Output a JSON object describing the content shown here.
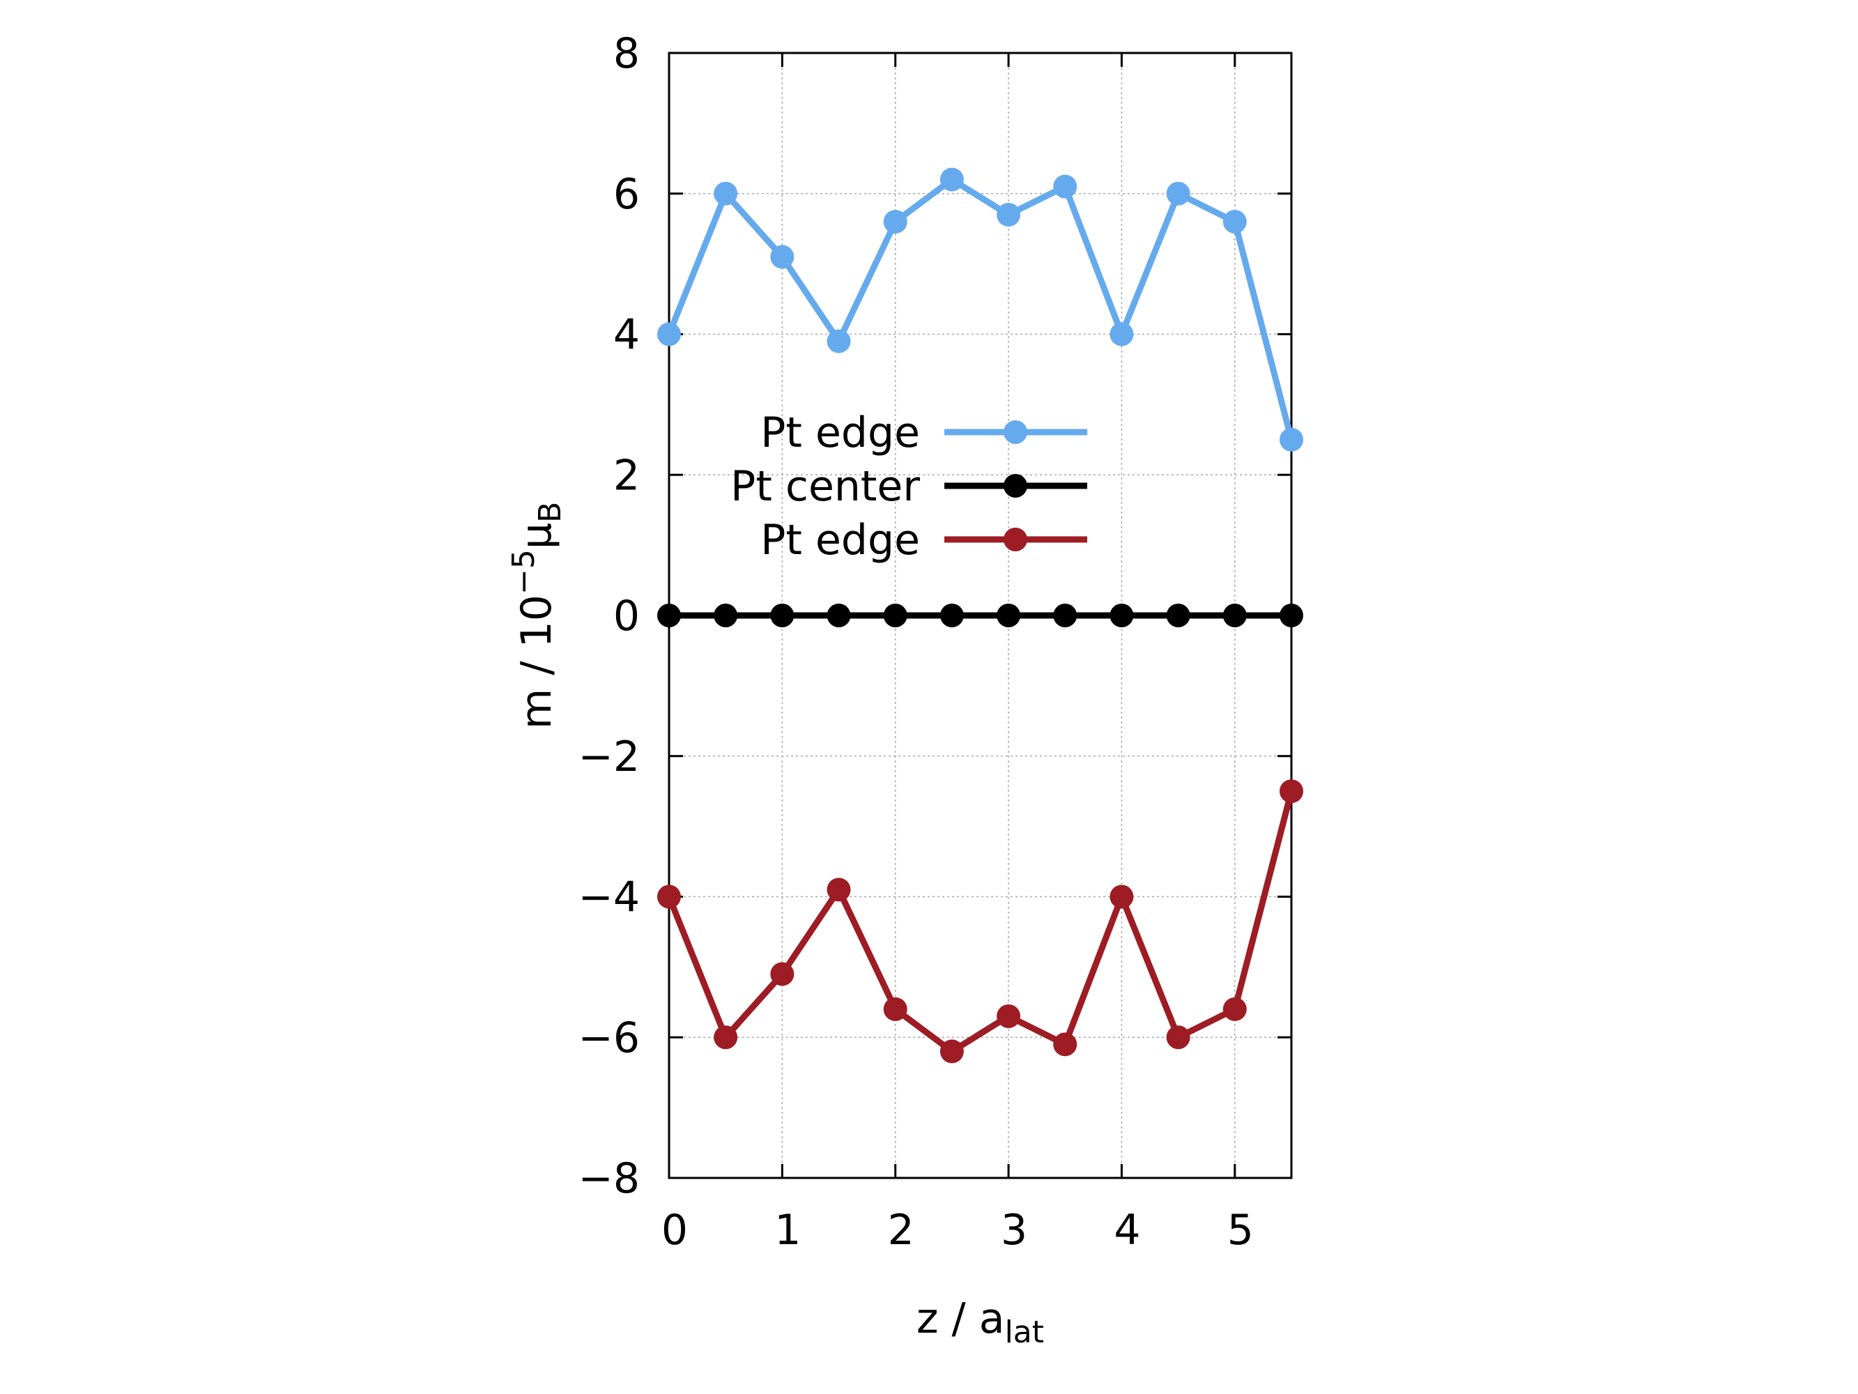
{
  "chart_data": {
    "type": "line",
    "title": "",
    "xlabel": {
      "main": "z / a",
      "sub": "lat"
    },
    "ylabel": {
      "main": "m / 10",
      "sup": "−5",
      "mu": "μ",
      "sub": "B"
    },
    "xlim": [
      0,
      5.5
    ],
    "ylim": [
      -8,
      8
    ],
    "xticks": [
      0,
      1,
      2,
      3,
      4,
      5
    ],
    "xtick_labels": [
      "0",
      "1",
      "2",
      "3",
      "4",
      "5"
    ],
    "yticks": [
      -8,
      -6,
      -4,
      -2,
      0,
      2,
      4,
      6,
      8
    ],
    "ytick_labels": [
      "−8",
      "−6",
      "−4",
      "−2",
      "0",
      "2",
      "4",
      "6",
      "8"
    ],
    "grid": true,
    "legend_position": "center-left",
    "x": [
      0,
      0.5,
      1,
      1.5,
      2,
      2.5,
      3,
      3.5,
      4,
      4.5,
      5,
      5.5
    ],
    "series": [
      {
        "name": "Pt edge",
        "color": "#66aaee",
        "values": [
          4.0,
          6.0,
          5.1,
          3.9,
          5.6,
          6.2,
          5.7,
          6.1,
          4.0,
          6.0,
          5.6,
          2.5
        ]
      },
      {
        "name": "Pt center",
        "color": "#000000",
        "values": [
          0,
          0,
          0,
          0,
          0,
          0,
          0,
          0,
          0,
          0,
          0,
          0
        ]
      },
      {
        "name": "Pt edge",
        "color": "#9e1c24",
        "values": [
          -4.0,
          -6.0,
          -5.1,
          -3.9,
          -5.6,
          -6.2,
          -5.7,
          -6.1,
          -4.0,
          -6.0,
          -5.6,
          -2.5
        ]
      }
    ]
  }
}
